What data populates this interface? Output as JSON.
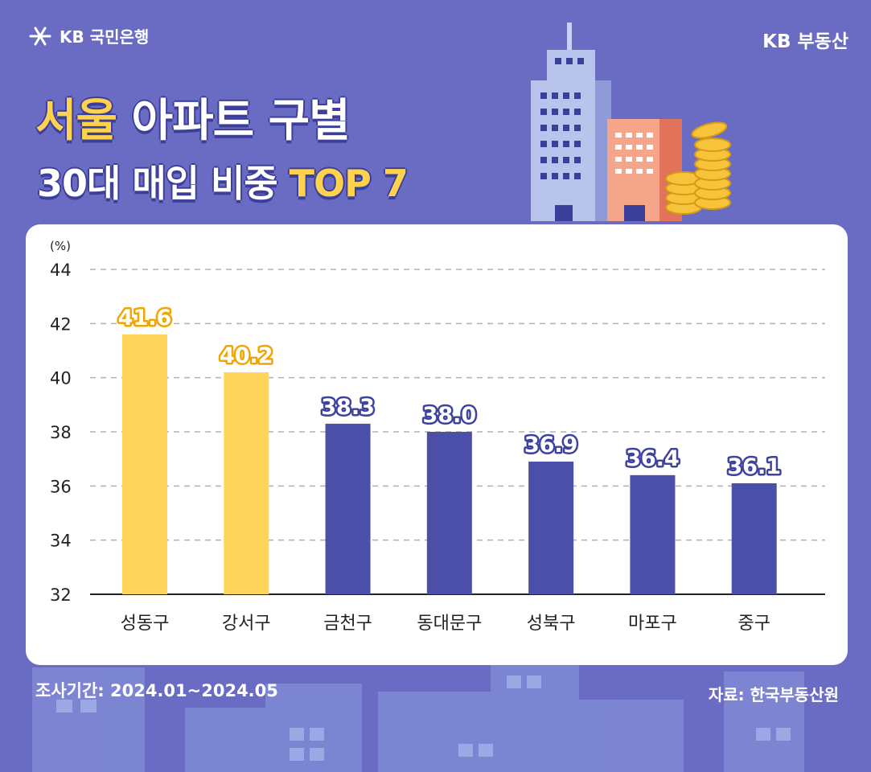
{
  "brand": {
    "left_label": "KB 국민은행",
    "right_label": "KB 부동산"
  },
  "title": {
    "highlight": "서울",
    "rest": " 아파트 구별",
    "line2_prefix": "30대 매입 비중 ",
    "line2_highlight": "TOP 7"
  },
  "colors": {
    "background": "#6a6cc4",
    "highlight_bar": "#ffd45a",
    "normal_bar": "#4b4fa8",
    "highlight_label": "#f0a500",
    "normal_label": "#3f43a0"
  },
  "chart_data": {
    "type": "bar",
    "title": "서울 아파트 구별 30대 매입 비중 TOP 7",
    "unit_label": "(%)",
    "xlabel": "",
    "ylabel": "(%)",
    "ylim": [
      32,
      44
    ],
    "yticks": [
      32,
      34,
      36,
      38,
      40,
      42,
      44
    ],
    "grid": true,
    "categories": [
      "성동구",
      "강서구",
      "금천구",
      "동대문구",
      "성북구",
      "마포구",
      "중구"
    ],
    "values": [
      41.6,
      40.2,
      38.3,
      38.0,
      36.9,
      36.4,
      36.1
    ],
    "value_labels": [
      "41.6",
      "40.2",
      "38.3",
      "38.0",
      "36.9",
      "36.4",
      "36.1"
    ],
    "highlighted": [
      true,
      true,
      false,
      false,
      false,
      false,
      false
    ]
  },
  "footer": {
    "period": "조사기간: 2024.01~2024.05",
    "source": "자료: 한국부동산원"
  }
}
